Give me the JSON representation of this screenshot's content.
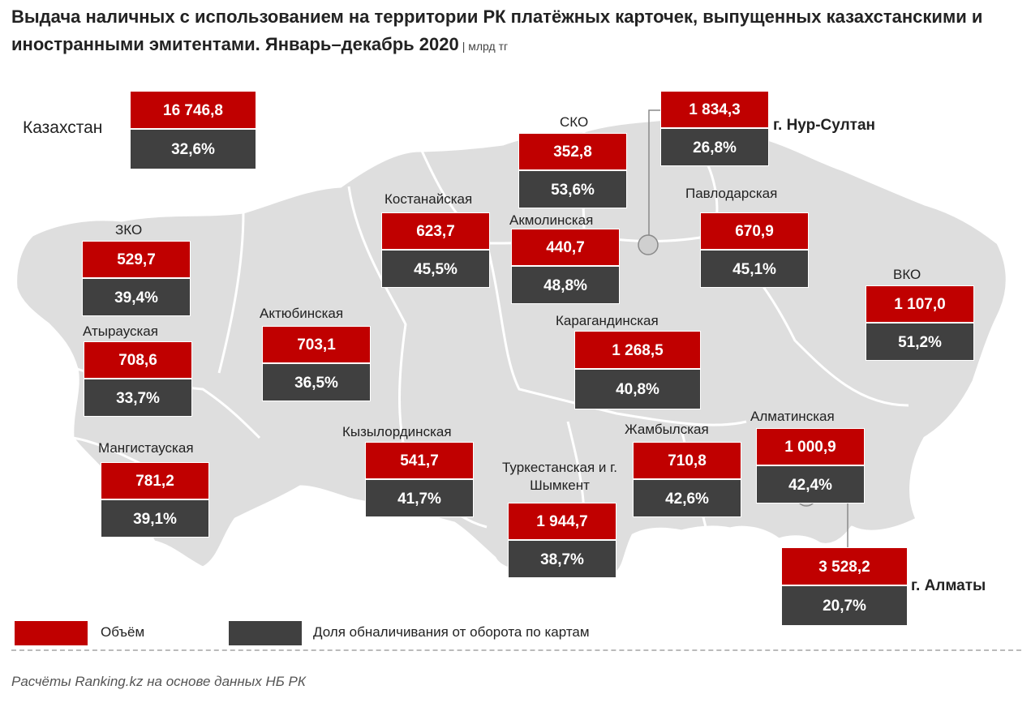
{
  "title": "Выдача наличных с использованием на территории РК платёжных карточек, выпущенных казахстанскими и иностранными эмитентами. Январь–декабрь 2020",
  "unit": "млрд тг",
  "colors": {
    "volume": "#c00000",
    "share": "#404040",
    "map_fill": "#dedede",
    "map_border": "#ffffff"
  },
  "national": {
    "label": "Казахстан",
    "volume": "16 746,8",
    "share": "32,6%"
  },
  "regions": [
    {
      "name": "ЗКО",
      "volume": "529,7",
      "share": "39,4%"
    },
    {
      "name": "Атырауская",
      "volume": "708,6",
      "share": "33,7%"
    },
    {
      "name": "Мангистауская",
      "volume": "781,2",
      "share": "39,1%"
    },
    {
      "name": "Актюбинская",
      "volume": "703,1",
      "share": "36,5%"
    },
    {
      "name": "Костанайская",
      "volume": "623,7",
      "share": "45,5%"
    },
    {
      "name": "СКО",
      "volume": "352,8",
      "share": "53,6%"
    },
    {
      "name": "Акмолинская",
      "volume": "440,7",
      "share": "48,8%"
    },
    {
      "name": "г. Нур-Султан",
      "volume": "1 834,3",
      "share": "26,8%"
    },
    {
      "name": "Павлодарская",
      "volume": "670,9",
      "share": "45,1%"
    },
    {
      "name": "ВКО",
      "volume": "1 107,0",
      "share": "51,2%"
    },
    {
      "name": "Карагандинская",
      "volume": "1 268,5",
      "share": "40,8%"
    },
    {
      "name": "Кызылординская",
      "volume": "541,7",
      "share": "41,7%"
    },
    {
      "name": "Туркестанская и г. Шымкент",
      "volume": "1 944,7",
      "share": "38,7%"
    },
    {
      "name": "Жамбылская",
      "volume": "710,8",
      "share": "42,6%"
    },
    {
      "name": "Алматинская",
      "volume": "1 000,9",
      "share": "42,4%"
    },
    {
      "name": "г. Алматы",
      "volume": "3 528,2",
      "share": "20,7%"
    }
  ],
  "legend": {
    "volume_label": "Объём",
    "share_label": "Доля обналичивания от оборота по картам"
  },
  "source": "Расчёты Ranking.kz на основе данных НБ РК"
}
